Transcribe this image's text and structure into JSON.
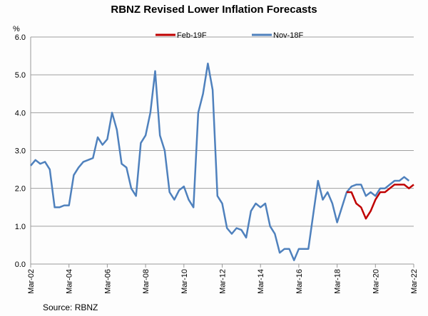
{
  "chart_data": {
    "type": "line",
    "title": "RBNZ Revised Lower Inflation Forecasts",
    "ylabel": "%",
    "xlabel": "",
    "ylim": [
      0,
      6
    ],
    "yticks": [
      "0.0",
      "1.0",
      "2.0",
      "3.0",
      "4.0",
      "5.0",
      "6.0"
    ],
    "grid": true,
    "legend_position": "top",
    "frequency": "quarterly",
    "x_start": "Mar-02",
    "xticks": [
      "Mar-02",
      "Mar-04",
      "Mar-06",
      "Mar-08",
      "Mar-10",
      "Mar-12",
      "Mar-14",
      "Mar-16",
      "Mar-18",
      "Mar-20",
      "Mar-22"
    ],
    "series": [
      {
        "name": "Feb-19F",
        "color": "#c00000",
        "start_index": 66,
        "values": [
          1.9,
          1.9,
          1.6,
          1.5,
          1.2,
          1.4,
          1.7,
          1.9,
          1.9,
          2.0,
          2.1,
          2.1,
          2.1,
          2.0,
          2.1
        ]
      },
      {
        "name": "Nov-18F",
        "color": "#4f81bd",
        "start_index": 0,
        "values": [
          2.6,
          2.75,
          2.65,
          2.7,
          2.5,
          1.5,
          1.5,
          1.55,
          1.55,
          2.35,
          2.55,
          2.7,
          2.75,
          2.8,
          3.35,
          3.15,
          3.3,
          4.0,
          3.55,
          2.65,
          2.55,
          2.0,
          1.8,
          3.2,
          3.4,
          4.0,
          5.1,
          3.4,
          3.0,
          1.9,
          1.7,
          1.95,
          2.05,
          1.7,
          1.5,
          4.0,
          4.5,
          5.3,
          4.6,
          1.8,
          1.6,
          0.95,
          0.8,
          0.95,
          0.9,
          0.7,
          1.4,
          1.6,
          1.5,
          1.6,
          1.0,
          0.8,
          0.3,
          0.4,
          0.4,
          0.1,
          0.4,
          0.4,
          0.4,
          1.3,
          2.2,
          1.7,
          1.9,
          1.6,
          1.1,
          1.5,
          1.9,
          2.05,
          2.1,
          2.1,
          1.8,
          1.9,
          1.8,
          2.0,
          2.0,
          2.1,
          2.2,
          2.2,
          2.3,
          2.2
        ]
      }
    ],
    "source": "Source: RBNZ"
  }
}
